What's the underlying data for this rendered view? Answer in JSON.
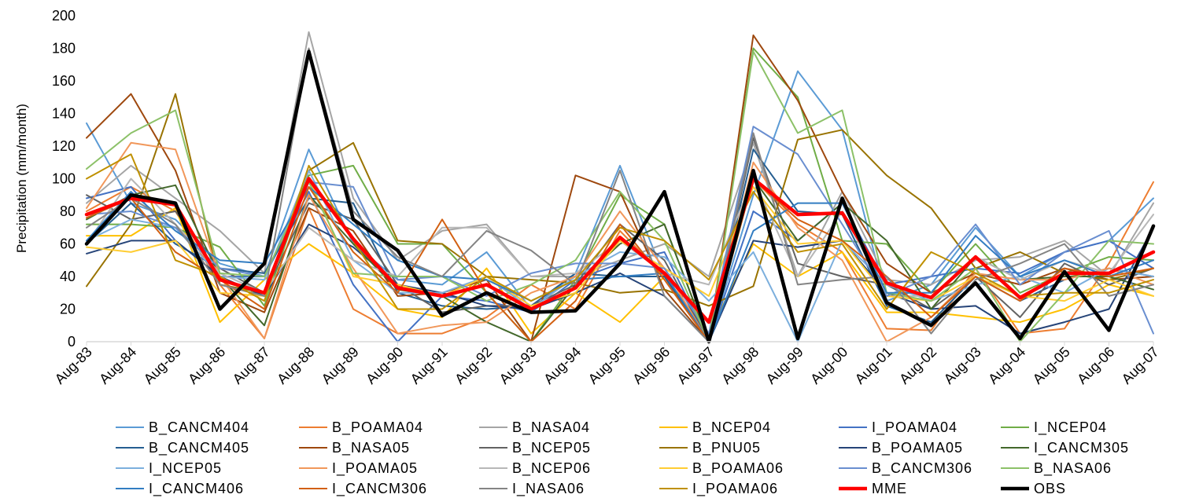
{
  "chart_data": {
    "type": "line",
    "ylabel": "Precipitation (mm/month)",
    "xlabel": "",
    "ylim": [
      0,
      200
    ],
    "yticks": [
      0,
      20,
      40,
      60,
      80,
      100,
      120,
      140,
      160,
      180,
      200
    ],
    "grid": false,
    "legend_position": "bottom",
    "categories": [
      "Aug-83",
      "Aug-84",
      "Aug-85",
      "Aug-86",
      "Aug-87",
      "Aug-88",
      "Aug-89",
      "Aug-90",
      "Aug-91",
      "Aug-92",
      "Aug-93",
      "Aug-94",
      "Aug-95",
      "Aug-96",
      "Aug-97",
      "Aug-98",
      "Aug-99",
      "Aug-00",
      "Aug-01",
      "Aug-02",
      "Aug-03",
      "Aug-04",
      "Aug-05",
      "Aug-06",
      "Aug-07"
    ],
    "series": [
      {
        "name": "B_CANCM404",
        "color": "#5b9bd5",
        "width": 2,
        "values": [
          134,
          85,
          75,
          48,
          40,
          118,
          60,
          38,
          35,
          55,
          20,
          42,
          108,
          40,
          0,
          90,
          166,
          130,
          25,
          35,
          70,
          40,
          55,
          62,
          88
        ]
      },
      {
        "name": "B_POAMA04",
        "color": "#ed7d31",
        "width": 2,
        "values": [
          80,
          95,
          80,
          35,
          2,
          82,
          20,
          5,
          5,
          15,
          35,
          20,
          68,
          40,
          0,
          100,
          72,
          55,
          8,
          7,
          45,
          5,
          8,
          48,
          98
        ]
      },
      {
        "name": "B_NASA04",
        "color": "#a5a5a5",
        "width": 2,
        "values": [
          85,
          108,
          88,
          68,
          42,
          190,
          88,
          50,
          68,
          72,
          40,
          40,
          50,
          60,
          40,
          122,
          40,
          92,
          38,
          35,
          50,
          52,
          62,
          40,
          85
        ]
      },
      {
        "name": "B_NCEP04",
        "color": "#ffc000",
        "width": 2,
        "values": [
          65,
          65,
          82,
          12,
          38,
          60,
          42,
          20,
          15,
          45,
          5,
          30,
          12,
          40,
          5,
          60,
          40,
          55,
          18,
          18,
          15,
          12,
          20,
          35,
          28
        ]
      },
      {
        "name": "I_POAMA04",
        "color": "#4472c4",
        "width": 2,
        "values": [
          88,
          95,
          62,
          40,
          40,
          92,
          35,
          0,
          28,
          25,
          18,
          38,
          48,
          55,
          0,
          80,
          62,
          85,
          35,
          40,
          45,
          42,
          55,
          62,
          45
        ]
      },
      {
        "name": "I_NCEP04",
        "color": "#70ad47",
        "width": 2,
        "values": [
          72,
          72,
          70,
          58,
          22,
          102,
          108,
          60,
          60,
          30,
          0,
          38,
          90,
          72,
          0,
          180,
          150,
          62,
          60,
          30,
          60,
          30,
          42,
          52,
          50
        ]
      },
      {
        "name": "B_CANCM405",
        "color": "#255e91",
        "width": 2,
        "values": [
          60,
          85,
          60,
          45,
          42,
          88,
          85,
          30,
          22,
          20,
          22,
          42,
          40,
          40,
          0,
          118,
          80,
          78,
          22,
          12,
          40,
          25,
          38,
          45,
          40
        ]
      },
      {
        "name": "B_NASA05",
        "color": "#9e480e",
        "width": 2,
        "values": [
          125,
          152,
          105,
          30,
          18,
          82,
          68,
          28,
          30,
          38,
          0,
          102,
          92,
          32,
          0,
          188,
          148,
          92,
          48,
          30,
          42,
          35,
          45,
          38,
          40
        ]
      },
      {
        "name": "B_NCEP05",
        "color": "#636363",
        "width": 2,
        "values": [
          90,
          75,
          80,
          45,
          30,
          85,
          75,
          35,
          18,
          22,
          22,
          35,
          72,
          50,
          0,
          125,
          48,
          40,
          35,
          20,
          40,
          15,
          48,
          35,
          45
        ]
      },
      {
        "name": "B_PNU05",
        "color": "#997300",
        "width": 2,
        "values": [
          34,
          72,
          152,
          35,
          30,
          105,
          122,
          62,
          60,
          40,
          38,
          36,
          30,
          32,
          22,
          34,
          124,
          130,
          102,
          82,
          45,
          55,
          42,
          38,
          45
        ]
      },
      {
        "name": "B_POAMA05",
        "color": "#264478",
        "width": 2,
        "values": [
          54,
          62,
          62,
          40,
          28,
          72,
          58,
          35,
          30,
          22,
          20,
          30,
          42,
          28,
          0,
          62,
          58,
          62,
          30,
          20,
          22,
          5,
          12,
          20,
          70
        ]
      },
      {
        "name": "I_CANCM305",
        "color": "#43682b",
        "width": 2,
        "values": [
          75,
          90,
          96,
          40,
          10,
          90,
          60,
          32,
          28,
          12,
          0,
          35,
          60,
          72,
          0,
          100,
          62,
          85,
          62,
          20,
          52,
          38,
          40,
          40,
          32
        ]
      },
      {
        "name": "I_NCEP05",
        "color": "#7cafdd",
        "width": 2,
        "values": [
          62,
          75,
          70,
          40,
          38,
          105,
          50,
          30,
          30,
          40,
          20,
          40,
          55,
          52,
          25,
          55,
          0,
          62,
          35,
          25,
          35,
          40,
          30,
          45,
          40
        ]
      },
      {
        "name": "I_POAMA05",
        "color": "#f1975a",
        "width": 2,
        "values": [
          82,
          122,
          118,
          40,
          2,
          90,
          45,
          5,
          10,
          12,
          30,
          40,
          80,
          45,
          0,
          110,
          70,
          50,
          0,
          15,
          42,
          38,
          38,
          45,
          35
        ]
      },
      {
        "name": "B_NCEP06",
        "color": "#b7b7b7",
        "width": 2,
        "values": [
          60,
          100,
          72,
          42,
          30,
          70,
          50,
          40,
          70,
          70,
          40,
          42,
          62,
          42,
          35,
          100,
          40,
          80,
          28,
          28,
          52,
          38,
          50,
          42,
          78
        ]
      },
      {
        "name": "B_POAMA06",
        "color": "#ffcd33",
        "width": 2,
        "values": [
          58,
          55,
          62,
          30,
          28,
          100,
          40,
          35,
          28,
          40,
          22,
          30,
          62,
          45,
          28,
          95,
          60,
          62,
          28,
          25,
          40,
          28,
          25,
          38,
          28
        ]
      },
      {
        "name": "B_CANCM306",
        "color": "#698ed0",
        "width": 2,
        "values": [
          78,
          80,
          70,
          45,
          40,
          98,
          95,
          38,
          40,
          28,
          42,
          48,
          48,
          45,
          5,
          132,
          115,
          72,
          28,
          40,
          72,
          35,
          55,
          68,
          5
        ]
      },
      {
        "name": "B_NASA06",
        "color": "#8cc168",
        "width": 2,
        "values": [
          106,
          128,
          142,
          42,
          40,
          98,
          42,
          40,
          40,
          25,
          35,
          50,
          92,
          62,
          0,
          178,
          128,
          142,
          30,
          25,
          45,
          0,
          30,
          62,
          60
        ]
      },
      {
        "name": "I_CANCM406",
        "color": "#327dc2",
        "width": 2,
        "values": [
          62,
          92,
          68,
          50,
          48,
          95,
          72,
          50,
          40,
          38,
          25,
          38,
          40,
          42,
          0,
          68,
          85,
          85,
          30,
          30,
          65,
          40,
          50,
          40,
          50
        ]
      },
      {
        "name": "I_CANCM306",
        "color": "#d26012",
        "width": 2,
        "values": [
          76,
          88,
          55,
          38,
          20,
          95,
          55,
          30,
          75,
          30,
          0,
          25,
          72,
          38,
          0,
          100,
          75,
          62,
          40,
          15,
          40,
          25,
          45,
          40,
          45
        ]
      },
      {
        "name": "I_NASA06",
        "color": "#848484",
        "width": 2,
        "values": [
          70,
          88,
          72,
          35,
          28,
          180,
          80,
          52,
          40,
          68,
          56,
          35,
          105,
          28,
          0,
          128,
          35,
          38,
          40,
          5,
          38,
          48,
          60,
          28,
          35
        ]
      },
      {
        "name": "I_POAMA06",
        "color": "#bf9000",
        "width": 2,
        "values": [
          100,
          115,
          50,
          40,
          25,
          108,
          62,
          20,
          20,
          40,
          25,
          38,
          70,
          62,
          38,
          92,
          55,
          60,
          20,
          55,
          42,
          28,
          30,
          30,
          38
        ]
      },
      {
        "name": "MME",
        "color": "#ff0000",
        "width": 4.5,
        "values": [
          78,
          88,
          84,
          38,
          30,
          100,
          63,
          33,
          28,
          35,
          20,
          33,
          64,
          42,
          12,
          100,
          78,
          79,
          36,
          27,
          52,
          27,
          42,
          42,
          55
        ]
      },
      {
        "name": "OBS",
        "color": "#000000",
        "width": 4.5,
        "values": [
          60,
          90,
          85,
          20,
          48,
          178,
          75,
          56,
          16,
          30,
          18,
          19,
          48,
          92,
          0,
          105,
          2,
          88,
          24,
          10,
          36,
          2,
          43,
          7,
          71
        ]
      }
    ]
  }
}
